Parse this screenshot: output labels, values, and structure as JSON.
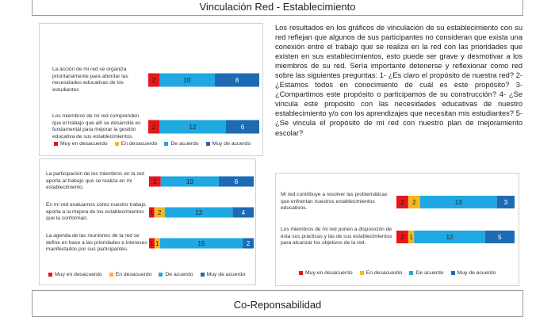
{
  "header": {
    "top_title": "Vinculación Red - Establecimiento",
    "bottom_title": "Co-Reponsabilidad"
  },
  "paragraph": "Los resultados en los gráficos de vinculación de su establecimiento con su red reflejan que algunos de sus participantes no consideran que exista una conexión entre el trabajo que se realiza en la red con las prioridades que existen en sus establecimientos, esto puede ser grave y desmotivar a los miembros de su red. Sería importante detenerse y reflexionar como red sobre las siguientes preguntas: 1- ¿Es claro el propósito de nuestra red? 2- ¿Estamos todos en conocimiento de cuál es este propósito? 3- ¿Compartimos este propósito o participamos de su construcción? 4- ¿Se vincula este propósito con las necesidades educativas de nuestro establecimiento y/o con los aprendizajes que necesitan mis estudiantes? 5- ¿Se vincula el propósito de mi red con nuestro plan de mejoramiento escolar?",
  "legend": {
    "items": [
      "Muy en desacuerdo",
      "En desacuerdo",
      "De acuerdo",
      "Muy de acuerdo"
    ],
    "colors": [
      "#e3171c",
      "#f5b81f",
      "#1fa8e1",
      "#1d6bb4"
    ]
  },
  "chart_data": [
    {
      "type": "bar",
      "orientation": "horizontal-stacked",
      "categories": [
        "La acción de mi red se organiza prioritariamente para abordar las necesidades educativas de los estudiantes",
        "Los miembros de mi red comprenden que el trabajo que allí se desarrolla es fundamental para mejorar la gestión educativa de sus establecimientos."
      ],
      "series": [
        {
          "name": "Muy en desacuerdo",
          "values": [
            2,
            2
          ]
        },
        {
          "name": "En desacuerdo",
          "values": [
            0,
            0
          ]
        },
        {
          "name": "De acuerdo",
          "values": [
            10,
            12
          ]
        },
        {
          "name": "Muy de acuerdo",
          "values": [
            8,
            6
          ]
        }
      ],
      "legend_position": "bottom"
    },
    {
      "type": "bar",
      "orientation": "horizontal-stacked",
      "categories": [
        "La participación de los miembros en la red aporta al trabajo que se realiza en mi establecimiento.",
        "En mi red evaluamos cómo nuestro trabajo aporta a la mejora de los establecimientos que la conforman.",
        "La agenda de las reuniones de la red se define en base a las prioridades e intereses manifestados por sus participantes."
      ],
      "series": [
        {
          "name": "Muy en desacuerdo",
          "values": [
            2,
            1,
            1
          ]
        },
        {
          "name": "En desacuerdo",
          "values": [
            0,
            2,
            1
          ]
        },
        {
          "name": "De acuerdo",
          "values": [
            10,
            13,
            15
          ]
        },
        {
          "name": "Muy de acuerdo",
          "values": [
            6,
            4,
            2
          ]
        }
      ],
      "legend_position": "bottom"
    },
    {
      "type": "bar",
      "orientation": "horizontal-stacked",
      "categories": [
        "Mi red contribuye a resolver las problemáticas que enfrentan nuestros establecimientos educativos.",
        "Los miembros de mi red ponen a disposición de ésta sus prácticas y las de sus establecimientos para alcanzar los objetivos de la red."
      ],
      "series": [
        {
          "name": "Muy en desacuerdo",
          "values": [
            2,
            2
          ]
        },
        {
          "name": "En desacuerdo",
          "values": [
            2,
            1
          ]
        },
        {
          "name": "De acuerdo",
          "values": [
            13,
            12
          ]
        },
        {
          "name": "Muy de acuerdo",
          "values": [
            3,
            5
          ]
        }
      ],
      "legend_position": "bottom"
    }
  ]
}
